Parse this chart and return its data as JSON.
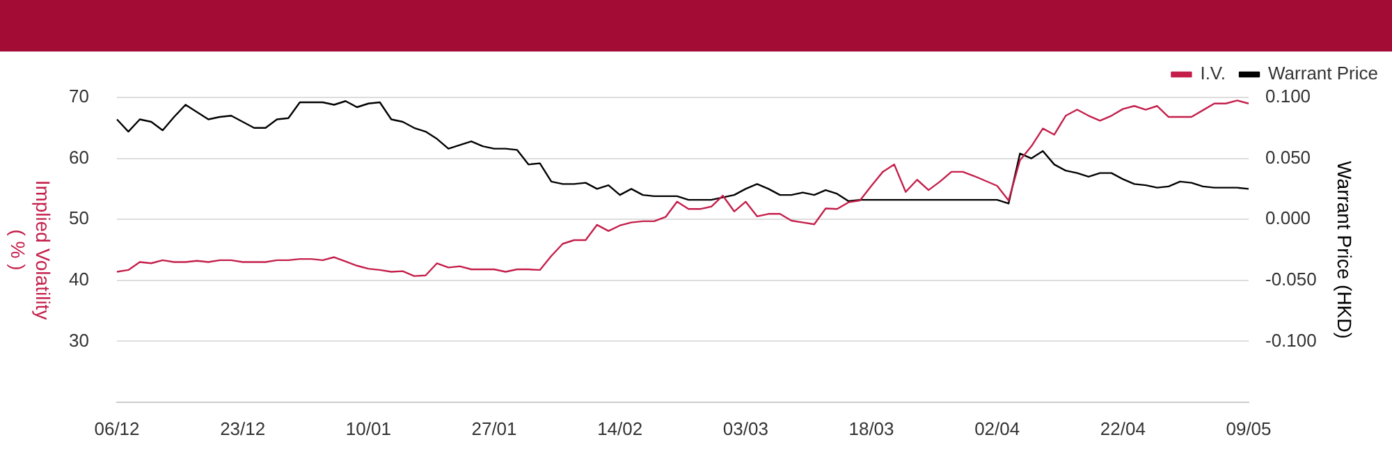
{
  "chart_data": {
    "type": "line",
    "ylabel": "Implied Volatility\n( % )",
    "y2label": "Warrant Price (HKD)",
    "categories": [
      "06/12",
      null,
      null,
      null,
      null,
      null,
      null,
      null,
      null,
      null,
      null,
      "23/12",
      null,
      null,
      null,
      null,
      null,
      null,
      null,
      null,
      null,
      null,
      "10/01",
      null,
      null,
      null,
      null,
      null,
      null,
      null,
      null,
      null,
      null,
      "27/01",
      null,
      null,
      null,
      null,
      null,
      null,
      null,
      null,
      null,
      null,
      "14/02",
      null,
      null,
      null,
      null,
      null,
      null,
      null,
      null,
      null,
      null,
      "03/03",
      null,
      null,
      null,
      null,
      null,
      null,
      null,
      null,
      null,
      null,
      "18/03",
      null,
      null,
      null,
      null,
      null,
      null,
      null,
      null,
      null,
      null,
      "02/04",
      null,
      null,
      null,
      null,
      null,
      null,
      null,
      null,
      null,
      null,
      "22/04",
      null,
      null,
      null,
      null,
      null,
      null,
      null,
      null,
      null,
      null,
      "09/05"
    ],
    "series": [
      {
        "name": "I.V.",
        "color": "#c41e4a",
        "values": [
          41.4,
          41.7,
          43.0,
          42.8,
          43.3,
          43.0,
          43.0,
          43.2,
          43.0,
          43.3,
          43.3,
          43.0,
          43.0,
          43.0,
          43.3,
          43.3,
          43.5,
          43.5,
          43.3,
          43.8,
          43.1,
          42.4,
          41.9,
          41.7,
          41.4,
          41.5,
          40.7,
          40.8,
          42.8,
          42.1,
          42.3,
          41.8,
          41.8,
          41.8,
          41.4,
          41.8,
          41.8,
          41.7,
          44.0,
          46.0,
          46.6,
          46.6,
          49.1,
          48.1,
          49.0,
          49.5,
          49.7,
          49.7,
          50.4,
          52.9,
          51.7,
          51.7,
          52.1,
          53.9,
          51.3,
          52.9,
          50.5,
          50.9,
          50.9,
          49.8,
          49.5,
          49.2,
          51.8,
          51.7,
          52.8,
          53.1,
          55.5,
          57.8,
          59.0,
          54.5,
          56.5,
          54.8,
          56.2,
          57.8,
          57.8,
          57.1,
          56.3,
          55.5,
          53.1,
          59.7,
          62.0,
          64.9,
          63.9,
          67.0,
          68.0,
          67.0,
          66.2,
          67.0,
          68.1,
          68.6,
          68.0,
          68.6,
          66.8,
          66.8,
          66.8,
          67.9,
          69.0,
          69.0,
          69.5,
          69.0
        ]
      },
      {
        "name": "Warrant Price",
        "color": "#000000",
        "axis": "y2",
        "values": [
          0.082,
          0.072,
          0.082,
          0.08,
          0.073,
          0.084,
          0.094,
          0.088,
          0.082,
          0.084,
          0.085,
          0.08,
          0.075,
          0.075,
          0.082,
          0.083,
          0.096,
          0.096,
          0.096,
          0.094,
          0.097,
          0.092,
          0.095,
          0.096,
          0.082,
          0.08,
          0.075,
          0.072,
          0.066,
          0.058,
          0.061,
          0.064,
          0.06,
          0.058,
          0.058,
          0.057,
          0.045,
          0.046,
          0.031,
          0.029,
          0.029,
          0.03,
          0.025,
          0.028,
          0.02,
          0.025,
          0.02,
          0.019,
          0.019,
          0.019,
          0.016,
          0.016,
          0.016,
          0.018,
          0.02,
          0.025,
          0.029,
          0.025,
          0.02,
          0.02,
          0.022,
          0.02,
          0.024,
          0.021,
          0.015,
          0.016,
          0.016,
          0.016,
          0.016,
          0.016,
          0.016,
          0.016,
          0.016,
          0.016,
          0.016,
          0.016,
          0.016,
          0.016,
          0.013,
          0.054,
          0.05,
          0.056,
          0.045,
          0.04,
          0.038,
          0.035,
          0.038,
          0.038,
          0.033,
          0.029,
          0.028,
          0.026,
          0.027,
          0.031,
          0.03,
          0.027,
          0.026,
          0.026,
          0.026,
          0.025
        ]
      }
    ],
    "ylim": [
      20,
      70
    ],
    "yticks": [
      30,
      40,
      50,
      60,
      70
    ],
    "y2lim": [
      -0.15,
      0.1
    ],
    "y2ticks": [
      {
        "value": -0.1,
        "label": "-0.100"
      },
      {
        "value": -0.05,
        "label": "-0.050"
      },
      {
        "value": 0,
        "label": "0.000"
      },
      {
        "value": 0.05,
        "label": "0.050"
      },
      {
        "value": 0.1,
        "label": "0.100"
      }
    ],
    "grid": "y",
    "legend": "top right"
  }
}
